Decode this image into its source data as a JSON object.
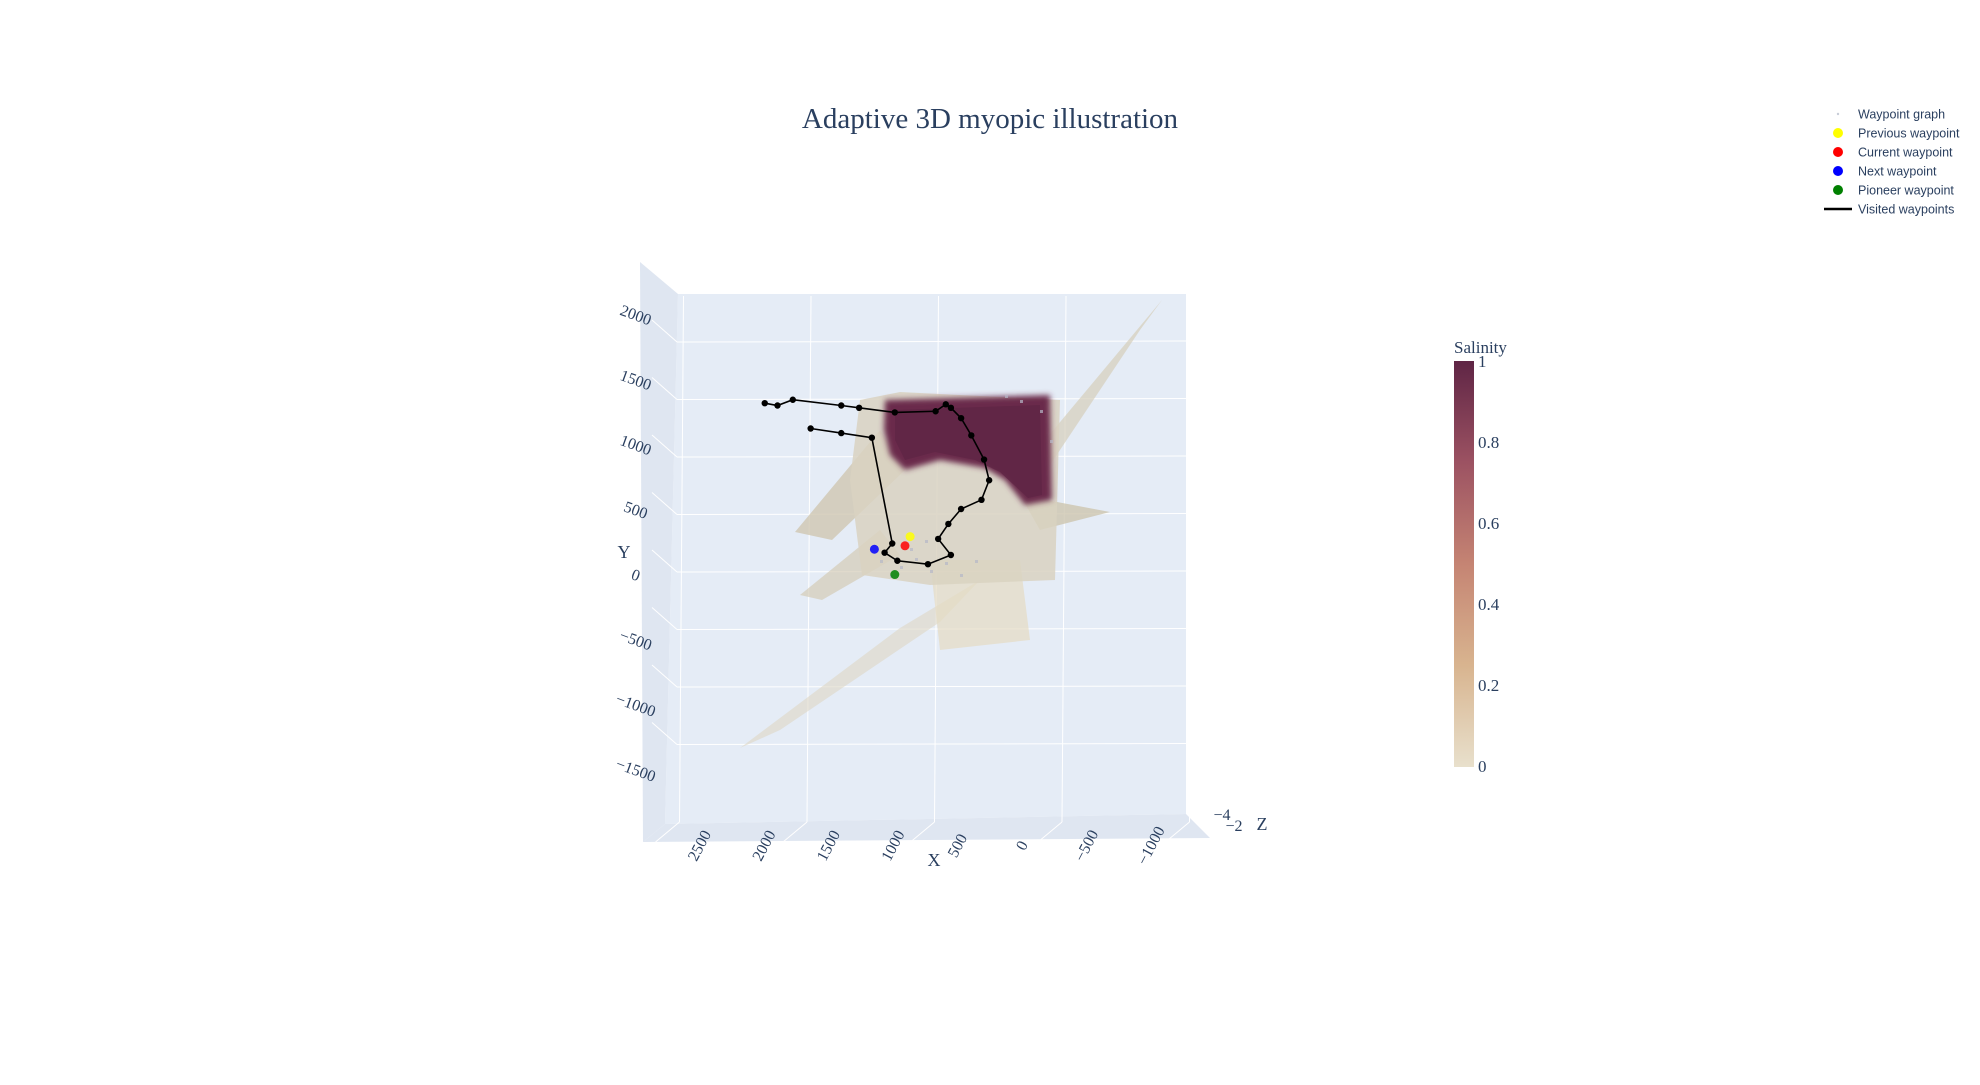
{
  "chart_data": {
    "type": "scatter3d",
    "title": "Adaptive 3D myopic illustration",
    "axes": {
      "x": {
        "label": "X",
        "ticks": [
          "2500",
          "2000",
          "1500",
          "1000",
          "500",
          "0",
          "−500",
          "−1000"
        ]
      },
      "y": {
        "label": "Y",
        "ticks": [
          "2000",
          "1500",
          "1000",
          "500",
          "0",
          "−500",
          "−1000",
          "−1500"
        ]
      },
      "z": {
        "label": "Z",
        "ticks": [
          "−4",
          "−2"
        ]
      }
    },
    "colorbar": {
      "title": "Salinity",
      "ticks": [
        "1",
        "0.8",
        "0.6",
        "0.4",
        "0.2",
        "0"
      ],
      "range": [
        0,
        1
      ],
      "colors": [
        "#e8e0cc",
        "#d8b48f",
        "#c58473",
        "#9c5262",
        "#5f2545"
      ]
    },
    "legend": {
      "placement": "top-right",
      "items": [
        {
          "name": "Waypoint graph",
          "symbol": "dot",
          "color": "#c8cdd8"
        },
        {
          "name": "Previous waypoint",
          "symbol": "dot",
          "color": "#ffff00"
        },
        {
          "name": "Current waypoint",
          "symbol": "dot",
          "color": "#ff0000"
        },
        {
          "name": "Next waypoint",
          "symbol": "dot",
          "color": "#0000ff"
        },
        {
          "name": "Pioneer waypoint",
          "symbol": "dot",
          "color": "#008000"
        },
        {
          "name": "Visited waypoints",
          "symbol": "line",
          "color": "#000000"
        }
      ]
    },
    "visited_path": {
      "x": [
        1150,
        1100,
        1040,
        850,
        780,
        640,
        480,
        440,
        420,
        380,
        340,
        290,
        270,
        300,
        380,
        430,
        470,
        420,
        510,
        630,
        680,
        650,
        730,
        850,
        970
      ],
      "y": [
        1520,
        1500,
        1550,
        1500,
        1480,
        1440,
        1450,
        1510,
        1480,
        1390,
        1240,
        1030,
        850,
        680,
        600,
        470,
        340,
        200,
        120,
        150,
        220,
        300,
        1220,
        1260,
        1300
      ]
    },
    "current_waypoints": {
      "previous": {
        "x": 580,
        "y": 360
      },
      "current": {
        "x": 600,
        "y": 280
      },
      "next": {
        "x": 720,
        "y": 250
      },
      "pioneer": {
        "x": 640,
        "y": 30
      }
    }
  }
}
